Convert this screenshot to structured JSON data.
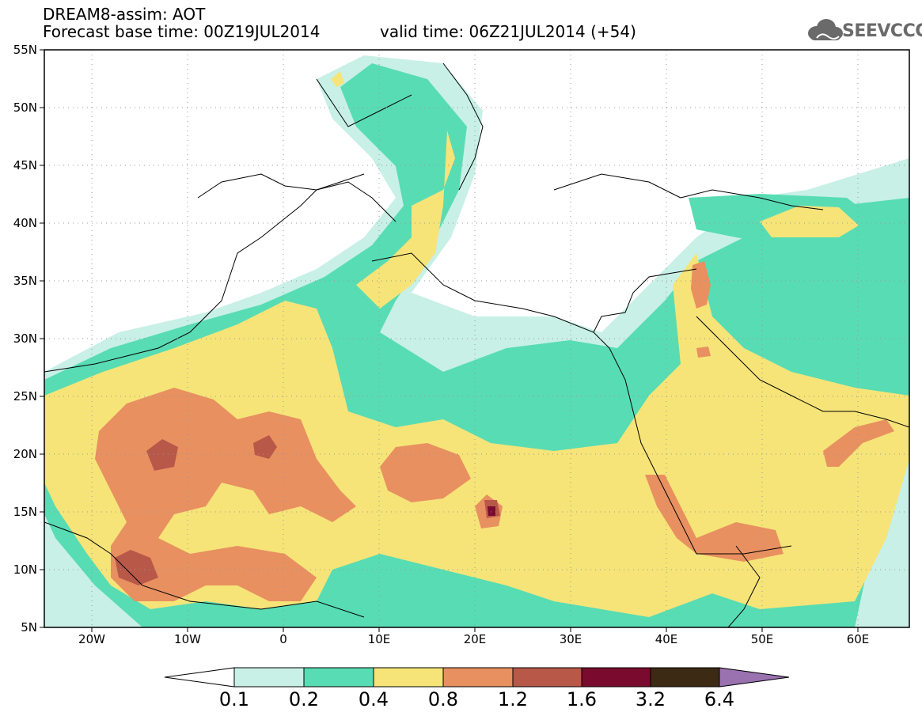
{
  "header": {
    "title": "DREAM8-assim: AOT",
    "forecast_base": "Forecast base time: 00Z19JUL2014",
    "valid_time": "valid time: 06Z21JUL2014 (+54)"
  },
  "logo": {
    "text": "SEEVCCC",
    "icon": "cloud-icon",
    "color": "#6a6a6a"
  },
  "axes": {
    "lon_ticks": [
      "20W",
      "10W",
      "0",
      "10E",
      "20E",
      "30E",
      "40E",
      "50E",
      "60E"
    ],
    "lat_ticks": [
      "55N",
      "50N",
      "45N",
      "40N",
      "35N",
      "30N",
      "25N",
      "20N",
      "15N",
      "10N",
      "5N"
    ],
    "lon_range": [
      -25,
      65
    ],
    "lat_range": [
      5,
      55
    ]
  },
  "colorbar": {
    "labels": [
      "0.1",
      "0.2",
      "0.4",
      "0.8",
      "1.2",
      "1.6",
      "3.2",
      "6.4"
    ],
    "colors": [
      "#ffffff",
      "#c8f0e6",
      "#58dcb4",
      "#f6e478",
      "#e89060",
      "#b85848",
      "#7a0a2e",
      "#3c2a14",
      "#9a72b0"
    ]
  }
}
